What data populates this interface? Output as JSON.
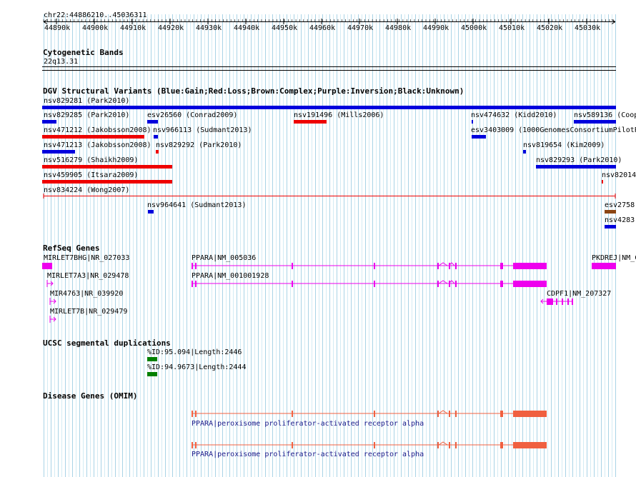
{
  "ruler": {
    "location": "chr22:44886210..45036311",
    "ticks": [
      "44890k",
      "44900k",
      "44910k",
      "44920k",
      "44930k",
      "44940k",
      "44950k",
      "44960k",
      "44970k",
      "44980k",
      "44990k",
      "45000k",
      "45010k",
      "45020k",
      "45030k"
    ]
  },
  "cytoband": {
    "title": "Cytogenetic Bands",
    "band": "22q13.31"
  },
  "dgv": {
    "title": "DGV Structural Variants (Blue:Gain;Red:Loss;Brown:Complex;Purple:Inversion;Black:Unknown)",
    "colors": {
      "gain": "#0000dd",
      "loss": "#ee0000",
      "complex": "#8b4513"
    },
    "features": [
      {
        "label": "nsv829281 (Park2010)",
        "type": "gain"
      },
      {
        "label": "nsv829285 (Park2010)",
        "type": "gain"
      },
      {
        "label": "esv26560 (Conrad2009)",
        "type": "gain"
      },
      {
        "label": "nsv191496 (Mills2006)",
        "type": "loss"
      },
      {
        "label": "nsv474632 (Kidd2010)",
        "type": "gain"
      },
      {
        "label": "nsv589136 (Coop",
        "type": "gain"
      },
      {
        "label": "nsv471212 (Jakobsson2008)",
        "type": "loss"
      },
      {
        "label": "nsv966113 (Sudmant2013)",
        "type": "gain"
      },
      {
        "label": "esv3403009 (1000GenomesConsortiumPilotP",
        "type": "gain"
      },
      {
        "label": "nsv471213 (Jakobsson2008)",
        "type": "gain"
      },
      {
        "label": "nsv829292 (Park2010)",
        "type": "loss"
      },
      {
        "label": "nsv819654 (Kim2009)",
        "type": "gain"
      },
      {
        "label": "nsv516279 (Shaikh2009)",
        "type": "loss"
      },
      {
        "label": "nsv829293 (Park2010)",
        "type": "gain"
      },
      {
        "label": "nsv459905 (Itsara2009)",
        "type": "loss"
      },
      {
        "label": "nsv82014",
        "type": "loss"
      },
      {
        "label": "nsv834224 (Wong2007)",
        "type": "loss"
      },
      {
        "label": "nsv964641 (Sudmant2013)",
        "type": "gain"
      },
      {
        "label": "esv2758",
        "type": "complex"
      },
      {
        "label": "nsv4283",
        "type": "gain"
      }
    ]
  },
  "refseq": {
    "title": "RefSeq Genes",
    "color": "#ee00ee",
    "genes": [
      {
        "label": "MIRLET7BHG|NR_027033"
      },
      {
        "label": "PPARA|NM_005036"
      },
      {
        "label": "PKDREJ|NM_C"
      },
      {
        "label": "MIRLET7A3|NR_029478"
      },
      {
        "label": "PPARA|NM_001001928"
      },
      {
        "label": "MIR4763|NR_039920"
      },
      {
        "label": "CDPF1|NM_207327"
      },
      {
        "label": "MIRLET7B|NR_029479"
      }
    ]
  },
  "segdup": {
    "title": "UCSC segmental duplications",
    "color": "#008000",
    "items": [
      {
        "label": "%ID:95.094|Length:2446"
      },
      {
        "label": "%ID:94.9673|Length:2444"
      }
    ]
  },
  "omim": {
    "title": "Disease Genes (OMIM)",
    "color": "#f06040",
    "items": [
      {
        "label": "PPARA|peroxisome proliferator-activated receptor alpha"
      },
      {
        "label": "PPARA|peroxisome proliferator-activated receptor alpha"
      }
    ]
  }
}
